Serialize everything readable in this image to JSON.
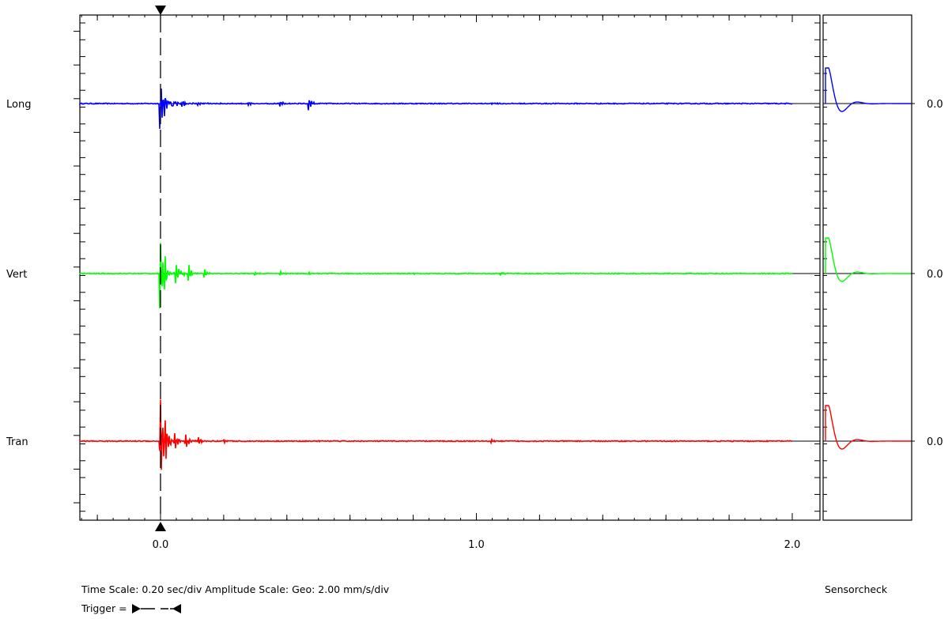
{
  "chart_data": {
    "type": "line",
    "x_ticks": [
      "0.0",
      "1.0",
      "2.0"
    ],
    "xlim": [
      -0.25,
      2.02
    ],
    "trigger_time": 0.0,
    "channels": [
      {
        "name": "Long",
        "color": "#0000ff",
        "value_label": "0.0",
        "events": [
          {
            "t": 0.0,
            "amp": 1.1
          },
          {
            "t": 0.015,
            "amp": 0.3
          },
          {
            "t": 0.04,
            "amp": 0.15
          },
          {
            "t": 0.07,
            "amp": 0.12
          },
          {
            "t": 0.12,
            "amp": 0.08
          },
          {
            "t": 0.28,
            "amp": 0.06
          },
          {
            "t": 0.38,
            "amp": 0.1
          },
          {
            "t": 0.47,
            "amp": 0.22
          },
          {
            "t": 1.05,
            "amp": 0.04
          }
        ]
      },
      {
        "name": "Vert",
        "color": "#00ff00",
        "value_label": "0.0",
        "events": [
          {
            "t": 0.0,
            "amp": 1.15
          },
          {
            "t": 0.015,
            "amp": 0.5
          },
          {
            "t": 0.05,
            "amp": 0.35
          },
          {
            "t": 0.09,
            "amp": 0.3
          },
          {
            "t": 0.14,
            "amp": 0.15
          },
          {
            "t": 0.3,
            "amp": 0.05
          },
          {
            "t": 0.38,
            "amp": 0.06
          },
          {
            "t": 0.47,
            "amp": 0.05
          },
          {
            "t": 0.8,
            "amp": 0.04
          },
          {
            "t": 1.08,
            "amp": 0.05
          }
        ]
      },
      {
        "name": "Tran",
        "color": "#ff0000",
        "value_label": "0.0",
        "events": [
          {
            "t": 0.0,
            "amp": 1.6
          },
          {
            "t": 0.015,
            "amp": 0.8
          },
          {
            "t": 0.045,
            "amp": 0.4
          },
          {
            "t": 0.08,
            "amp": 0.25
          },
          {
            "t": 0.12,
            "amp": 0.15
          },
          {
            "t": 0.2,
            "amp": 0.08
          },
          {
            "t": 0.5,
            "amp": 0.03
          },
          {
            "t": 1.05,
            "amp": 0.05
          }
        ]
      }
    ]
  },
  "footer": {
    "scale_text": "Time Scale: 0.20 sec/div   Amplitude Scale: Geo: 2.00 mm/s/div",
    "trigger_label": "Trigger =",
    "sensorcheck_label": "Sensorcheck"
  }
}
